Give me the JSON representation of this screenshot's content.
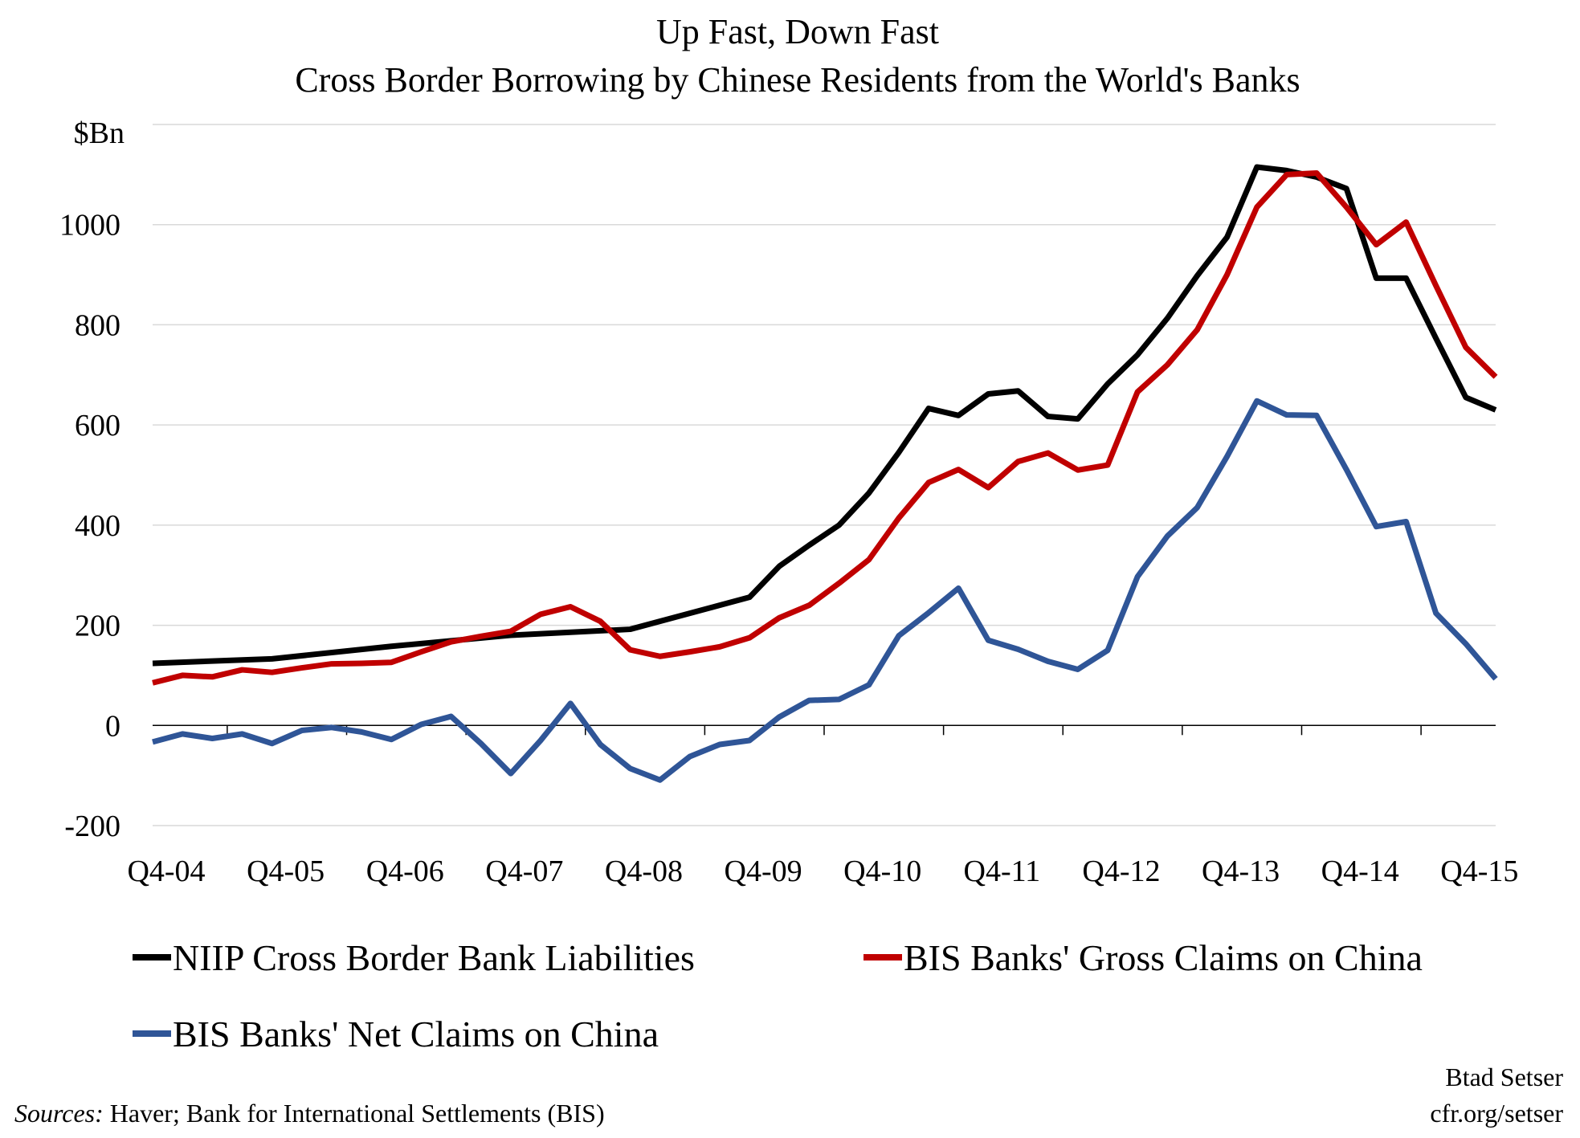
{
  "chart_data": {
    "type": "line",
    "title": "Up Fast, Down Fast",
    "subtitle": "Cross Border Borrowing by Chinese Residents from the World's Banks",
    "ylabel": "$Bn",
    "ylim": [
      -200,
      1200
    ],
    "yticks": [
      1000,
      800,
      600,
      400,
      200,
      0,
      -200
    ],
    "ytick_labels": [
      "1000",
      "800",
      "600",
      "400",
      "200",
      "0",
      "-200"
    ],
    "categories": [
      "Q4-04",
      "Q1-05",
      "Q2-05",
      "Q3-05",
      "Q4-05",
      "Q1-06",
      "Q2-06",
      "Q3-06",
      "Q4-06",
      "Q1-07",
      "Q2-07",
      "Q3-07",
      "Q4-07",
      "Q1-08",
      "Q2-08",
      "Q3-08",
      "Q4-08",
      "Q1-09",
      "Q2-09",
      "Q3-09",
      "Q4-09",
      "Q1-10",
      "Q2-10",
      "Q3-10",
      "Q4-10",
      "Q1-11",
      "Q2-11",
      "Q3-11",
      "Q4-11",
      "Q1-12",
      "Q2-12",
      "Q3-12",
      "Q4-12",
      "Q1-13",
      "Q2-13",
      "Q3-13",
      "Q4-13",
      "Q1-14",
      "Q2-14",
      "Q3-14",
      "Q4-14",
      "Q1-15",
      "Q2-15",
      "Q3-15",
      "Q4-15",
      "Q1-16"
    ],
    "xtick_labels": [
      "Q4-04",
      "Q4-05",
      "Q4-06",
      "Q4-07",
      "Q4-08",
      "Q4-09",
      "Q4-10",
      "Q4-11",
      "Q4-12",
      "Q4-13",
      "Q4-14",
      "Q4-15"
    ],
    "grid": true,
    "legend_position": "bottom",
    "series": [
      {
        "name": "NIIP Cross Border Bank Liabilities",
        "color": "#000000",
        "values": [
          124,
          null,
          null,
          null,
          133,
          null,
          null,
          null,
          158,
          null,
          null,
          null,
          180,
          null,
          null,
          null,
          192,
          null,
          null,
          null,
          256,
          318,
          360,
          400,
          464,
          545,
          633,
          619,
          662,
          668,
          617,
          612,
          682,
          740,
          813,
          898,
          975,
          1115,
          1108,
          1095,
          1072,
          893,
          893,
          773,
          655,
          630
        ]
      },
      {
        "name": "BIS Banks' Gross Claims on China",
        "color": "#c00000",
        "values": [
          85,
          100,
          97,
          111,
          106,
          115,
          123,
          124,
          126,
          147,
          167,
          178,
          188,
          222,
          237,
          208,
          151,
          138,
          147,
          157,
          175,
          215,
          240,
          284,
          331,
          414,
          485,
          511,
          475,
          527,
          544,
          510,
          520,
          666,
          720,
          790,
          900,
          1035,
          1100,
          1103,
          1035,
          960,
          1005,
          878,
          755,
          696
        ]
      },
      {
        "name": "BIS Banks' Net Claims on China",
        "color": "#2f5597",
        "values": [
          -33,
          -17,
          -26,
          -17,
          -36,
          -10,
          -4,
          -13,
          -28,
          2,
          18,
          -36,
          -96,
          -30,
          44,
          -38,
          -86,
          -109,
          -62,
          -38,
          -30,
          17,
          50,
          52,
          81,
          179,
          225,
          274,
          170,
          152,
          128,
          112,
          150,
          297,
          378,
          435,
          537,
          648,
          620,
          619,
          511,
          397,
          407,
          224,
          163,
          93
        ]
      }
    ]
  },
  "footer": {
    "sources_label": "Sources:",
    "sources_text": " Haver; Bank for International Settlements (BIS)",
    "credit_name": "Btad Setser",
    "credit_url": "cfr.org/setser"
  }
}
